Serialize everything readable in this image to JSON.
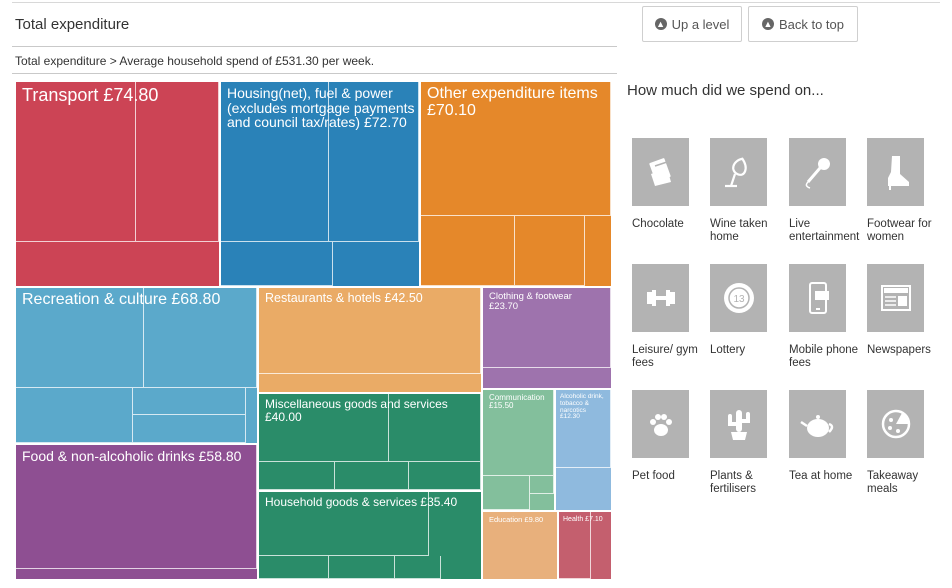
{
  "header": {
    "title": "Total expenditure",
    "breadcrumb": "Total expenditure > Average household spend of £531.30 per week."
  },
  "buttons": {
    "up_level": "Up a level",
    "back_top": "Back to top"
  },
  "sidebar": {
    "heading": "How much did we spend on...",
    "items": [
      {
        "label": "Chocolate",
        "icon": "chocolate-icon"
      },
      {
        "label": "Wine taken home",
        "icon": "wine-glass-icon"
      },
      {
        "label": "Live entertainment",
        "icon": "microphone-icon"
      },
      {
        "label": "Footwear for women",
        "icon": "boot-icon"
      },
      {
        "label": "Leisure/ gym fees",
        "icon": "dumbbell-icon"
      },
      {
        "label": "Lottery",
        "icon": "lottery-ball-icon"
      },
      {
        "label": "Mobile phone fees",
        "icon": "mobile-phone-icon"
      },
      {
        "label": "Newspapers",
        "icon": "newspaper-icon"
      },
      {
        "label": "Pet food",
        "icon": "paw-icon"
      },
      {
        "label": "Plants & fertilisers",
        "icon": "cactus-icon"
      },
      {
        "label": "Tea at home",
        "icon": "teapot-icon"
      },
      {
        "label": "Takeaway meals",
        "icon": "pizza-icon"
      }
    ]
  },
  "treemap": {
    "tiles": [
      {
        "label": "Transport £74.80",
        "color": "#cc4455"
      },
      {
        "label": "Housing(net), fuel & power (excludes mortgage payments and council tax/rates) £72.70",
        "color": "#2a82b8"
      },
      {
        "label": "Other expenditure items £70.10",
        "color": "#e5882a"
      },
      {
        "label": "Recreation & culture £68.80",
        "color": "#5ba9cb"
      },
      {
        "label": "Restaurants & hotels £42.50",
        "color": "#eaab66"
      },
      {
        "label": "Clothing & footwear £23.70",
        "color": "#9e73ad"
      },
      {
        "label": "Miscellaneous goods and services £40.00",
        "color": "#2a8c69"
      },
      {
        "label": "Communication £15.50",
        "color": "#83bf9c"
      },
      {
        "label": "Alcoholic drink, tobacco & narcotics £12.30",
        "color": "#8fbade"
      },
      {
        "label": "Food & non-alcoholic drinks £58.80",
        "color": "#8e4f92"
      },
      {
        "label": "Household goods & services £35.40",
        "color": "#2a8c69"
      },
      {
        "label": "Education £9.80",
        "color": "#e8b07c"
      },
      {
        "label": "Health £7.10",
        "color": "#c45f6e"
      }
    ]
  }
}
